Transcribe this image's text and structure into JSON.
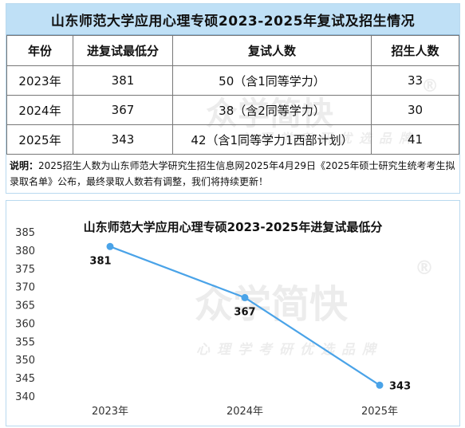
{
  "table": {
    "title": "山东师范大学应用心理专硕2023-2025年复试及招生情况",
    "headers": [
      "年份",
      "进复试最低分",
      "复试人数",
      "招生人数"
    ],
    "rows": [
      [
        "2023年",
        "381",
        "50（含1同等学力）",
        "33"
      ],
      [
        "2024年",
        "367",
        "38（含2同等学力）",
        "30"
      ],
      [
        "2025年",
        "343",
        "42（含1同等学力1西部计划）",
        "41"
      ]
    ],
    "note_label": "说明：",
    "note_text": "2025招生人数为山东师范大学研究生招生信息网2025年4月29日《2025年硕士研究生统考考生拟录取名单》公布，最终录取人数若有调整，我们将持续更新！"
  },
  "watermark": {
    "brand": "众学简快",
    "slogan": "心理学考研优选品牌",
    "registered": "®"
  },
  "chart_data": {
    "type": "line",
    "title": "山东师范大学应用心理专硕2023-2025年进复试最低分",
    "categories": [
      "2023年",
      "2024年",
      "2025年"
    ],
    "series": [
      {
        "values": [
          381,
          367,
          343
        ]
      }
    ],
    "ylim": [
      340,
      385
    ],
    "yticks": [
      340,
      345,
      350,
      355,
      360,
      365,
      370,
      375,
      380,
      385
    ],
    "xlabel": "",
    "ylabel": "",
    "grid": false,
    "legend": "none",
    "line_color": "#4aa3e8"
  }
}
